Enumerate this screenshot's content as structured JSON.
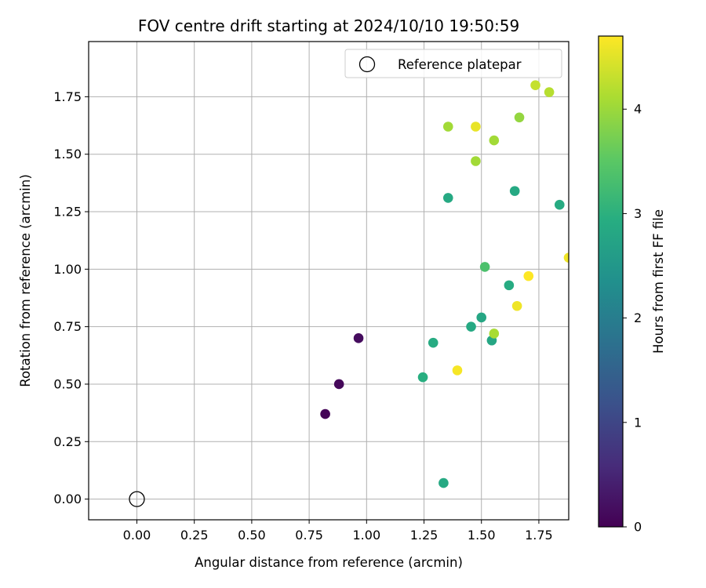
{
  "chart_data": {
    "type": "scatter",
    "title": "FOV centre drift starting at 2024/10/10 19:50:59",
    "xlabel": "Angular distance from reference (arcmin)",
    "ylabel": "Rotation from reference (arcmin)",
    "xlim": [
      -0.21,
      1.88
    ],
    "ylim": [
      -0.09,
      1.99
    ],
    "xticks": [
      0.0,
      0.25,
      0.5,
      0.75,
      1.0,
      1.25,
      1.5,
      1.75
    ],
    "xtick_labels": [
      "0.00",
      "0.25",
      "0.50",
      "0.75",
      "1.00",
      "1.25",
      "1.50",
      "1.75"
    ],
    "yticks": [
      0.0,
      0.25,
      0.5,
      0.75,
      1.0,
      1.25,
      1.5,
      1.75
    ],
    "ytick_labels": [
      "0.00",
      "0.25",
      "0.50",
      "0.75",
      "1.00",
      "1.25",
      "1.50",
      "1.75"
    ],
    "grid": true,
    "legend": {
      "position": "top-right",
      "entries": [
        "Reference platepar"
      ]
    },
    "reference_point": {
      "x": 0.0,
      "y": 0.0
    },
    "colorbar": {
      "label": "Hours from first FF file",
      "range": [
        0,
        4.7
      ],
      "colormap": "viridis",
      "ticks": [
        0,
        1,
        2,
        3,
        4
      ],
      "tick_labels": [
        "0",
        "1",
        "2",
        "3",
        "4"
      ]
    },
    "points": [
      {
        "x": 0.82,
        "y": 0.37,
        "hours": 0.05
      },
      {
        "x": 0.88,
        "y": 0.5,
        "hours": 0.1
      },
      {
        "x": 0.965,
        "y": 0.7,
        "hours": 0.15
      },
      {
        "x": 1.335,
        "y": 0.07,
        "hours": 2.85
      },
      {
        "x": 1.245,
        "y": 0.53,
        "hours": 2.95
      },
      {
        "x": 1.29,
        "y": 0.68,
        "hours": 2.9
      },
      {
        "x": 1.455,
        "y": 0.75,
        "hours": 2.85
      },
      {
        "x": 1.5,
        "y": 0.79,
        "hours": 2.8
      },
      {
        "x": 1.545,
        "y": 0.69,
        "hours": 2.8
      },
      {
        "x": 1.62,
        "y": 0.93,
        "hours": 2.9
      },
      {
        "x": 1.515,
        "y": 1.01,
        "hours": 3.35
      },
      {
        "x": 1.355,
        "y": 1.31,
        "hours": 2.85
      },
      {
        "x": 1.645,
        "y": 1.34,
        "hours": 2.85
      },
      {
        "x": 1.84,
        "y": 1.28,
        "hours": 2.9
      },
      {
        "x": 1.395,
        "y": 0.56,
        "hours": 4.65
      },
      {
        "x": 1.555,
        "y": 0.72,
        "hours": 4.1
      },
      {
        "x": 1.655,
        "y": 0.84,
        "hours": 4.6
      },
      {
        "x": 1.705,
        "y": 0.97,
        "hours": 4.7
      },
      {
        "x": 1.88,
        "y": 1.05,
        "hours": 4.6
      },
      {
        "x": 1.475,
        "y": 1.47,
        "hours": 4.05
      },
      {
        "x": 1.555,
        "y": 1.56,
        "hours": 4.05
      },
      {
        "x": 1.355,
        "y": 1.62,
        "hours": 4.05
      },
      {
        "x": 1.475,
        "y": 1.62,
        "hours": 4.55
      },
      {
        "x": 1.665,
        "y": 1.66,
        "hours": 3.95
      },
      {
        "x": 1.735,
        "y": 1.8,
        "hours": 4.3
      },
      {
        "x": 1.795,
        "y": 1.77,
        "hours": 4.2
      }
    ]
  }
}
